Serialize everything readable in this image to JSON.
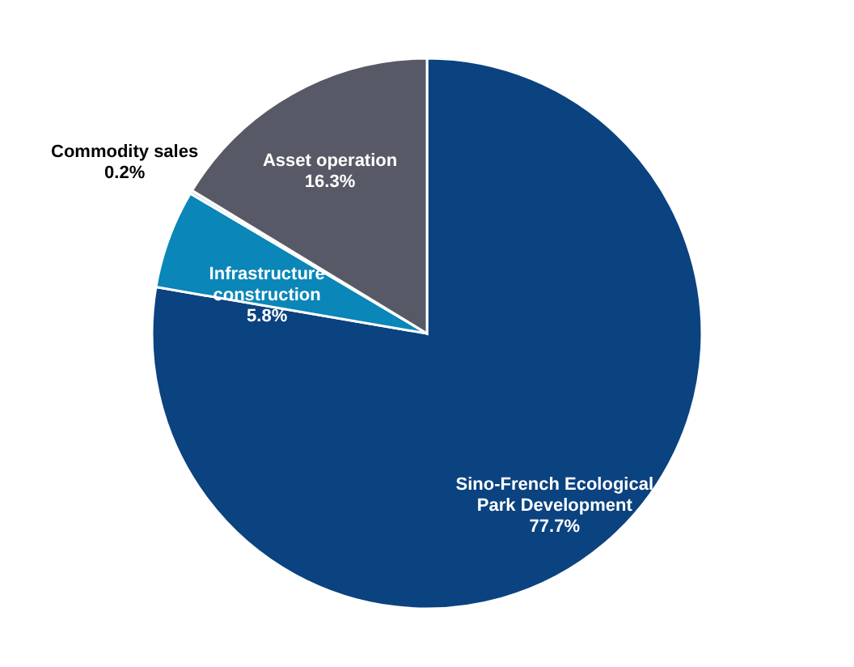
{
  "chart_data": {
    "type": "pie",
    "categories": [
      "Sino-French Ecological Park Development",
      "Infrastructure construction",
      "Commodity sales",
      "Asset operation"
    ],
    "values": [
      77.7,
      5.8,
      0.2,
      16.3
    ],
    "value_labels": [
      "77.7%",
      "5.8%",
      "0.2%",
      "16.3%"
    ],
    "colors": [
      "#0b4280",
      "#0a86b8",
      "#c8dbe8",
      "#575a66"
    ],
    "legend": false
  }
}
